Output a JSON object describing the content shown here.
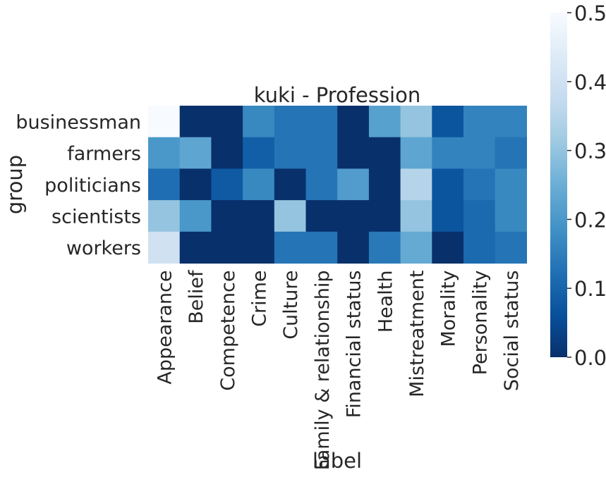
{
  "chart_data": {
    "type": "heatmap",
    "title": "kuki - Profession",
    "xlabel": "label",
    "ylabel": "group",
    "x_categories": [
      "Appearance",
      "Belief",
      "Competence",
      "Crime",
      "Culture",
      "Family & relationship",
      "Financial status",
      "Health",
      "Mistreatment",
      "Morality",
      "Personality",
      "Social status"
    ],
    "y_categories": [
      "businessman",
      "farmers",
      "politicians",
      "scientists",
      "workers"
    ],
    "values": [
      [
        0.5,
        0.0,
        0.0,
        0.17,
        0.13,
        0.13,
        0.0,
        0.22,
        0.3,
        0.07,
        0.16,
        0.16
      ],
      [
        0.2,
        0.23,
        0.0,
        0.09,
        0.13,
        0.13,
        0.0,
        0.0,
        0.23,
        0.16,
        0.16,
        0.13
      ],
      [
        0.12,
        0.0,
        0.08,
        0.17,
        0.0,
        0.13,
        0.21,
        0.0,
        0.35,
        0.07,
        0.13,
        0.17
      ],
      [
        0.3,
        0.2,
        0.0,
        0.0,
        0.3,
        0.0,
        0.0,
        0.0,
        0.3,
        0.07,
        0.11,
        0.17
      ],
      [
        0.4,
        0.0,
        0.0,
        0.0,
        0.13,
        0.13,
        0.0,
        0.14,
        0.24,
        0.0,
        0.11,
        0.13
      ]
    ],
    "colorbar": {
      "min": 0.0,
      "max": 0.5,
      "ticks": [
        "0.0",
        "0.1",
        "0.2",
        "0.3",
        "0.4",
        "0.5"
      ],
      "colormap": "Blues_r",
      "stops": [
        "#08306b",
        "#08519c",
        "#2171b5",
        "#4292c6",
        "#6baed6",
        "#9ecae1",
        "#c6dbef",
        "#deebf7",
        "#f7fbff"
      ]
    },
    "grid": false
  }
}
